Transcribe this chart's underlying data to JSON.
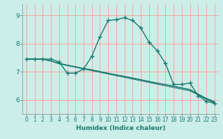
{
  "xlabel": "Humidex (Indice chaleur)",
  "bg_color": "#cceee8",
  "grid_color": "#ff9999",
  "line_color": "#1a7a6e",
  "xlim": [
    -0.5,
    23.5
  ],
  "ylim": [
    5.5,
    9.4
  ],
  "yticks": [
    6,
    7,
    8,
    9
  ],
  "xticks": [
    0,
    1,
    2,
    3,
    4,
    5,
    6,
    7,
    8,
    9,
    10,
    11,
    12,
    13,
    14,
    15,
    16,
    17,
    18,
    19,
    20,
    21,
    22,
    23
  ],
  "line1_x": [
    0,
    1,
    2,
    3,
    4,
    5,
    6,
    7,
    8,
    9,
    10,
    11,
    12,
    13,
    14,
    15,
    16,
    17,
    18,
    19,
    20,
    21,
    22,
    23
  ],
  "line1_y": [
    7.45,
    7.45,
    7.45,
    7.45,
    7.35,
    6.95,
    6.95,
    7.1,
    7.55,
    8.25,
    8.82,
    8.85,
    8.92,
    8.82,
    8.55,
    8.05,
    7.75,
    7.3,
    6.55,
    6.55,
    6.6,
    6.15,
    5.95,
    5.88
  ],
  "line2_x": [
    0,
    1,
    2,
    3,
    4,
    5,
    6,
    7,
    8,
    9,
    10,
    11,
    12,
    13,
    14,
    15,
    16,
    17,
    18,
    19,
    20,
    21,
    22,
    23
  ],
  "line2_y": [
    7.45,
    7.45,
    7.45,
    7.38,
    7.28,
    7.22,
    7.16,
    7.1,
    7.04,
    6.98,
    6.92,
    6.86,
    6.8,
    6.74,
    6.68,
    6.62,
    6.56,
    6.5,
    6.44,
    6.38,
    6.32,
    6.18,
    6.02,
    5.9
  ],
  "line3_x": [
    0,
    1,
    2,
    3,
    4,
    5,
    6,
    7,
    8,
    9,
    10,
    11,
    12,
    13,
    14,
    15,
    16,
    17,
    18,
    19,
    20,
    21,
    22,
    23
  ],
  "line3_y": [
    7.45,
    7.45,
    7.45,
    7.38,
    7.3,
    7.23,
    7.17,
    7.11,
    7.06,
    7.0,
    6.94,
    6.88,
    6.83,
    6.77,
    6.71,
    6.65,
    6.59,
    6.54,
    6.48,
    6.42,
    6.36,
    6.2,
    6.04,
    5.92
  ],
  "line4_x": [
    0,
    1,
    2,
    3,
    4,
    5,
    6,
    7,
    8,
    9,
    10,
    11,
    12,
    13,
    14,
    15,
    16,
    17,
    18,
    19,
    20,
    21,
    22,
    23
  ],
  "line4_y": [
    7.45,
    7.45,
    7.45,
    7.38,
    7.3,
    7.24,
    7.18,
    7.12,
    7.07,
    7.01,
    6.95,
    6.89,
    6.84,
    6.78,
    6.72,
    6.66,
    6.6,
    6.55,
    6.49,
    6.43,
    6.37,
    6.21,
    6.06,
    5.94
  ]
}
